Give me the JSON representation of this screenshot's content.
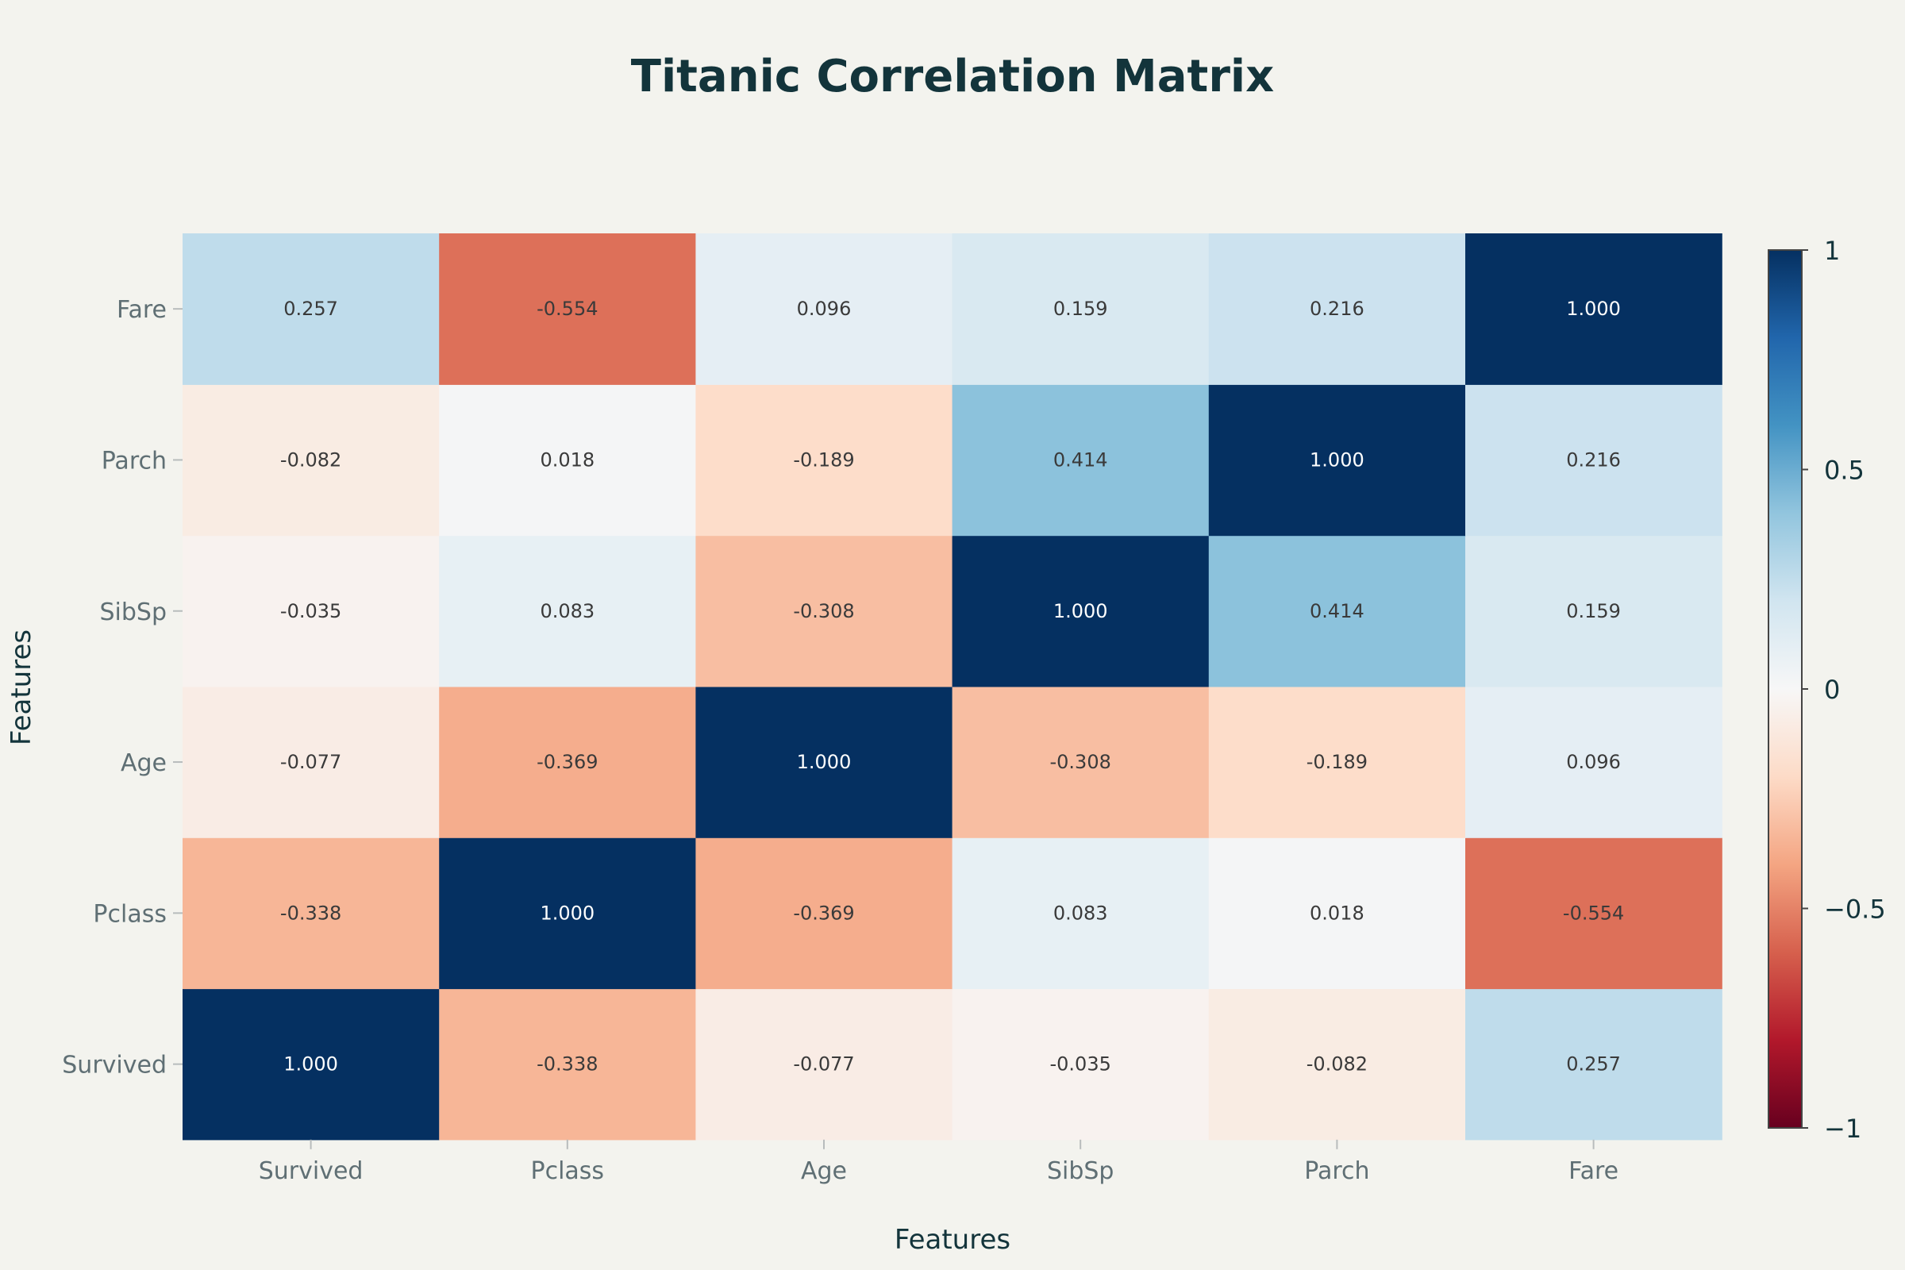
{
  "chart_data": {
    "type": "heatmap",
    "title": "Titanic Correlation Matrix",
    "xlabel": "Features",
    "ylabel": "Features",
    "x_categories": [
      "Survived",
      "Pclass",
      "Age",
      "SibSp",
      "Parch",
      "Fare"
    ],
    "y_categories": [
      "Survived",
      "Pclass",
      "Age",
      "SibSp",
      "Parch",
      "Fare"
    ],
    "values": [
      [
        1.0,
        -0.338,
        -0.077,
        -0.035,
        -0.082,
        0.257
      ],
      [
        -0.338,
        1.0,
        -0.369,
        0.083,
        0.018,
        -0.554
      ],
      [
        -0.077,
        -0.369,
        1.0,
        -0.308,
        -0.189,
        0.096
      ],
      [
        -0.035,
        0.083,
        -0.308,
        1.0,
        0.414,
        0.159
      ],
      [
        -0.082,
        0.018,
        -0.189,
        0.414,
        1.0,
        0.216
      ],
      [
        0.257,
        -0.554,
        0.096,
        0.159,
        0.216,
        1.0
      ]
    ],
    "value_labels": [
      [
        "1.000",
        "-0.338",
        "-0.077",
        "-0.035",
        "-0.082",
        "0.257"
      ],
      [
        "-0.338",
        "1.000",
        "-0.369",
        "0.083",
        "0.018",
        "-0.554"
      ],
      [
        "-0.077",
        "-0.369",
        "1.000",
        "-0.308",
        "-0.189",
        "0.096"
      ],
      [
        "-0.035",
        "0.083",
        "-0.308",
        "1.000",
        "0.414",
        "0.159"
      ],
      [
        "-0.082",
        "0.018",
        "-0.189",
        "0.414",
        "1.000",
        "0.216"
      ],
      [
        "0.257",
        "-0.554",
        "0.096",
        "0.159",
        "0.216",
        "1.000"
      ]
    ],
    "zlim": [
      -1,
      1
    ],
    "colorscale": "RdBu",
    "colorbar": {
      "ticks": [
        1,
        0.5,
        0,
        -0.5,
        -1
      ],
      "tick_labels": [
        "1",
        "0.5",
        "0",
        "−0.5",
        "−1"
      ]
    },
    "colors": {
      "background": "#f3f3ee",
      "text_dark": "#13343b",
      "tick_text": "#5f6f74",
      "scale": [
        "#67001f",
        "#b2182b",
        "#d6604d",
        "#f4a582",
        "#fddbc7",
        "#f7f7f7",
        "#d1e5f0",
        "#92c5de",
        "#4393c3",
        "#2166ac",
        "#053061"
      ]
    }
  }
}
